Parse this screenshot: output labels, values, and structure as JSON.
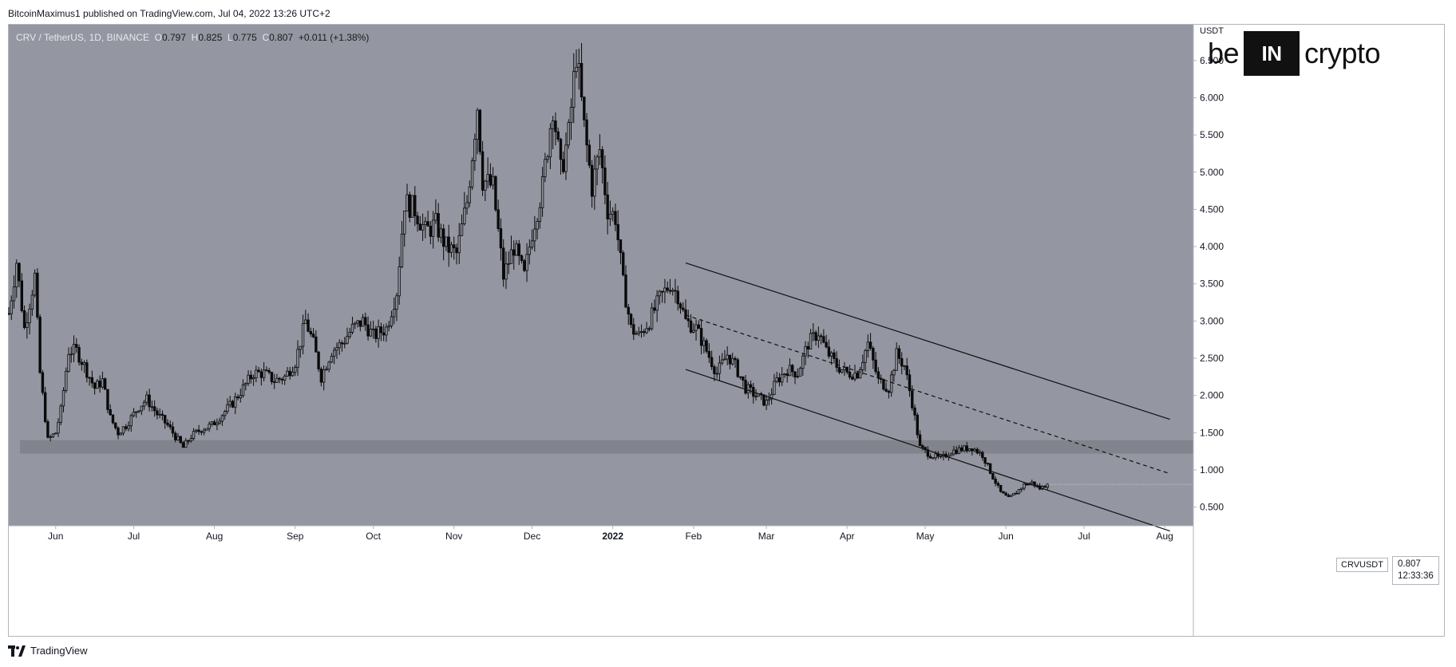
{
  "header": {
    "published": "BitcoinMaximus1 published on TradingView.com, Jul 04, 2022 13:26 UTC+2"
  },
  "legend": {
    "symbol": "CRV / TetherUS, 1D, BINANCE",
    "o_label": "O",
    "o_val": "0.797",
    "h_label": "H",
    "h_val": "0.825",
    "l_label": "L",
    "l_val": "0.775",
    "c_label": "C",
    "c_val": "0.807",
    "change": "+0.011 (+1.38%)"
  },
  "brand": {
    "left": "be",
    "box": "IN",
    "right": "crypto"
  },
  "price_axis": {
    "unit": "USDT"
  },
  "tags": {
    "symbol": "CRVUSDT",
    "price": "0.807",
    "countdown": "12:33:36"
  },
  "footer": {
    "label": "TradingView"
  },
  "colors": {
    "plot_bg": "#9496a1",
    "axis_bg": "#ffffff",
    "candle": "#0b0b0b",
    "support_zone": "#7b7d86"
  },
  "chart_data": {
    "type": "candlestick",
    "title": "CRV / TetherUS, 1D, BINANCE",
    "ylabel": "USDT",
    "ylim": [
      0.25,
      6.98
    ],
    "y_ticks": [
      "0.500",
      "1.000",
      "1.500",
      "2.000",
      "2.500",
      "3.000",
      "3.500",
      "4.000",
      "4.500",
      "5.000",
      "5.500",
      "6.000",
      "6.500"
    ],
    "x_ticks": [
      "Jun",
      "Jul",
      "Aug",
      "Sep",
      "Oct",
      "Nov",
      "Dec",
      "2022",
      "Feb",
      "Mar",
      "Apr",
      "May",
      "Jun",
      "Jul",
      "Aug"
    ],
    "x_tick_days": [
      18,
      48,
      79,
      110,
      140,
      171,
      201,
      232,
      263,
      291,
      322,
      352,
      383,
      413,
      444
    ],
    "x_range_days": [
      0,
      455
    ],
    "last_close": 0.807,
    "anchors": [
      [
        0,
        3.1
      ],
      [
        3,
        3.8
      ],
      [
        6,
        2.9
      ],
      [
        10,
        3.6
      ],
      [
        12,
        2.3
      ],
      [
        15,
        1.4
      ],
      [
        18,
        1.5
      ],
      [
        20,
        1.8
      ],
      [
        23,
        2.6
      ],
      [
        26,
        2.6
      ],
      [
        29,
        2.4
      ],
      [
        33,
        2.1
      ],
      [
        36,
        2.2
      ],
      [
        39,
        1.7
      ],
      [
        42,
        1.5
      ],
      [
        45,
        1.6
      ],
      [
        50,
        1.85
      ],
      [
        53,
        1.95
      ],
      [
        57,
        1.75
      ],
      [
        61,
        1.6
      ],
      [
        64,
        1.45
      ],
      [
        67,
        1.3
      ],
      [
        70,
        1.45
      ],
      [
        74,
        1.55
      ],
      [
        78,
        1.6
      ],
      [
        82,
        1.75
      ],
      [
        86,
        1.9
      ],
      [
        90,
        2.1
      ],
      [
        94,
        2.3
      ],
      [
        98,
        2.3
      ],
      [
        102,
        2.2
      ],
      [
        106,
        2.25
      ],
      [
        110,
        2.45
      ],
      [
        114,
        3.0
      ],
      [
        117,
        2.7
      ],
      [
        120,
        2.25
      ],
      [
        124,
        2.6
      ],
      [
        128,
        2.7
      ],
      [
        132,
        2.9
      ],
      [
        136,
        3.0
      ],
      [
        140,
        2.8
      ],
      [
        145,
        2.9
      ],
      [
        149,
        3.4
      ],
      [
        152,
        4.6
      ],
      [
        156,
        4.5
      ],
      [
        160,
        4.2
      ],
      [
        164,
        4.3
      ],
      [
        168,
        4.0
      ],
      [
        172,
        3.9
      ],
      [
        176,
        4.6
      ],
      [
        180,
        5.9
      ],
      [
        182,
        4.9
      ],
      [
        186,
        4.8
      ],
      [
        190,
        3.6
      ],
      [
        194,
        4.0
      ],
      [
        198,
        3.6
      ],
      [
        201,
        4.2
      ],
      [
        205,
        4.8
      ],
      [
        209,
        5.9
      ],
      [
        212,
        5.0
      ],
      [
        215,
        5.5
      ],
      [
        218,
        6.6
      ],
      [
        221,
        5.6
      ],
      [
        224,
        4.8
      ],
      [
        227,
        5.3
      ],
      [
        230,
        4.5
      ],
      [
        233,
        4.4
      ],
      [
        236,
        3.5
      ],
      [
        239,
        2.9
      ],
      [
        242,
        2.8
      ],
      [
        246,
        3.0
      ],
      [
        250,
        3.3
      ],
      [
        254,
        3.5
      ],
      [
        257,
        3.35
      ],
      [
        260,
        3.0
      ],
      [
        264,
        2.9
      ],
      [
        268,
        2.6
      ],
      [
        272,
        2.3
      ],
      [
        276,
        2.55
      ],
      [
        279,
        2.4
      ],
      [
        283,
        2.1
      ],
      [
        287,
        2.0
      ],
      [
        291,
        1.9
      ],
      [
        295,
        2.2
      ],
      [
        299,
        2.35
      ],
      [
        303,
        2.3
      ],
      [
        307,
        2.7
      ],
      [
        311,
        2.85
      ],
      [
        314,
        2.6
      ],
      [
        318,
        2.4
      ],
      [
        322,
        2.3
      ],
      [
        326,
        2.3
      ],
      [
        330,
        2.7
      ],
      [
        334,
        2.2
      ],
      [
        338,
        2.1
      ],
      [
        341,
        2.55
      ],
      [
        344,
        2.4
      ],
      [
        347,
        1.9
      ],
      [
        350,
        1.3
      ],
      [
        354,
        1.2
      ],
      [
        358,
        1.15
      ],
      [
        362,
        1.25
      ],
      [
        366,
        1.28
      ],
      [
        370,
        1.3
      ],
      [
        374,
        1.2
      ],
      [
        378,
        0.9
      ],
      [
        381,
        0.7
      ],
      [
        384,
        0.62
      ],
      [
        387,
        0.7
      ],
      [
        390,
        0.8
      ],
      [
        393,
        0.83
      ],
      [
        396,
        0.75
      ],
      [
        399,
        0.807
      ]
    ],
    "support_zone": [
      1.22,
      1.4
    ],
    "channel": {
      "upper": [
        [
          260,
          3.78
        ],
        [
          446,
          1.68
        ]
      ],
      "middle": [
        [
          260,
          3.08
        ],
        [
          446,
          0.95
        ]
      ],
      "lower": [
        [
          260,
          2.35
        ],
        [
          446,
          0.18
        ]
      ]
    }
  }
}
